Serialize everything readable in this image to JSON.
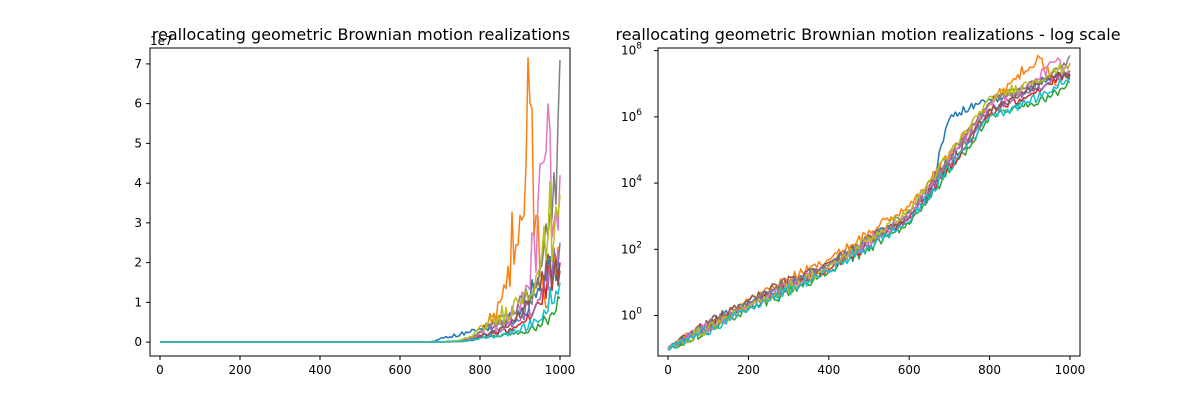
{
  "chart_data": [
    {
      "type": "line",
      "title": "reallocating geometric Brownian motion realizations",
      "xlabel": "",
      "ylabel": "",
      "xlim": [
        -25,
        1025
      ],
      "ylim": [
        -3500000,
        74000000
      ],
      "offset_label": "1e7",
      "x_ticks": [
        0,
        200,
        400,
        600,
        800,
        1000
      ],
      "x_tick_labels": [
        "0",
        "200",
        "400",
        "600",
        "800",
        "1000"
      ],
      "y_ticks": [
        0,
        10000000,
        20000000,
        30000000,
        40000000,
        50000000,
        60000000,
        70000000
      ],
      "y_tick_labels": [
        "0",
        "1",
        "2",
        "3",
        "4",
        "5",
        "6",
        "7"
      ],
      "grid": false,
      "legend": "none",
      "series": [
        {
          "color": "#1f77b4",
          "values": [
            [
              0,
              0.1
            ],
            [
              200,
              2.5
            ],
            [
              400,
              30
            ],
            [
              600,
              1200
            ],
            [
              650,
              3500
            ],
            [
              700,
              1000000
            ],
            [
              800,
              3200000
            ],
            [
              900,
              7000000
            ],
            [
              950,
              14000000
            ],
            [
              1000,
              20000000
            ]
          ]
        },
        {
          "color": "#ff7f0e",
          "values": [
            [
              0,
              0.1
            ],
            [
              200,
              3
            ],
            [
              400,
              50
            ],
            [
              600,
              2000
            ],
            [
              800,
              2500000
            ],
            [
              860,
              14000000
            ],
            [
              900,
              35000000
            ],
            [
              920,
              63000000
            ],
            [
              940,
              30000000
            ],
            [
              960,
              10000000
            ],
            [
              980,
              16000000
            ],
            [
              1000,
              24000000
            ]
          ]
        },
        {
          "color": "#2ca02c",
          "values": [
            [
              0,
              0.1
            ],
            [
              200,
              1.5
            ],
            [
              400,
              20
            ],
            [
              600,
              600
            ],
            [
              800,
              900000
            ],
            [
              900,
              2500000
            ],
            [
              950,
              4000000
            ],
            [
              1000,
              11000000
            ]
          ]
        },
        {
          "color": "#d62728",
          "values": [
            [
              0,
              0.1
            ],
            [
              200,
              2
            ],
            [
              400,
              25
            ],
            [
              600,
              800
            ],
            [
              800,
              1200000
            ],
            [
              900,
              5000000
            ],
            [
              950,
              10000000
            ],
            [
              1000,
              20000000
            ]
          ]
        },
        {
          "color": "#9467bd",
          "values": [
            [
              0,
              0.1
            ],
            [
              200,
              2
            ],
            [
              400,
              30
            ],
            [
              600,
              900
            ],
            [
              800,
              1800000
            ],
            [
              900,
              6000000
            ],
            [
              950,
              12000000
            ],
            [
              1000,
              25000000
            ]
          ]
        },
        {
          "color": "#8c564b",
          "values": [
            [
              0,
              0.1
            ],
            [
              200,
              3
            ],
            [
              400,
              40
            ],
            [
              600,
              1000
            ],
            [
              800,
              1600000
            ],
            [
              900,
              7000000
            ],
            [
              950,
              15000000
            ],
            [
              1000,
              18000000
            ]
          ]
        },
        {
          "color": "#e377c2",
          "values": [
            [
              0,
              0.1
            ],
            [
              200,
              2
            ],
            [
              400,
              30
            ],
            [
              600,
              1100
            ],
            [
              800,
              2400000
            ],
            [
              900,
              9000000
            ],
            [
              970,
              54000000
            ],
            [
              985,
              30000000
            ],
            [
              1000,
              42000000
            ]
          ]
        },
        {
          "color": "#7f7f7f",
          "values": [
            [
              0,
              0.1
            ],
            [
              200,
              2.5
            ],
            [
              400,
              35
            ],
            [
              600,
              1300
            ],
            [
              800,
              2800000
            ],
            [
              900,
              10000000
            ],
            [
              950,
              17000000
            ],
            [
              980,
              30000000
            ],
            [
              1000,
              71000000
            ]
          ]
        },
        {
          "color": "#bcbd22",
          "values": [
            [
              0,
              0.1
            ],
            [
              200,
              1.8
            ],
            [
              400,
              28
            ],
            [
              600,
              1500
            ],
            [
              800,
              3500000
            ],
            [
              900,
              11000000
            ],
            [
              950,
              20000000
            ],
            [
              1000,
              37000000
            ]
          ]
        },
        {
          "color": "#17becf",
          "values": [
            [
              0,
              0.1
            ],
            [
              200,
              1.5
            ],
            [
              400,
              22
            ],
            [
              600,
              700
            ],
            [
              800,
              1100000
            ],
            [
              900,
              3000000
            ],
            [
              950,
              6000000
            ],
            [
              1000,
              15000000
            ]
          ]
        }
      ]
    },
    {
      "type": "line",
      "title": "reallocating geometric Brownian motion realizations - log scale",
      "xlabel": "",
      "ylabel": "",
      "xlim": [
        -25,
        1025
      ],
      "ylim": [
        0.06,
        120000000
      ],
      "yscale": "log",
      "x_ticks": [
        0,
        200,
        400,
        600,
        800,
        1000
      ],
      "x_tick_labels": [
        "0",
        "200",
        "400",
        "600",
        "800",
        "1000"
      ],
      "y_ticks": [
        1,
        100,
        10000,
        1000000,
        100000000
      ],
      "y_tick_labels": [
        [
          "10",
          "0"
        ],
        [
          "10",
          "2"
        ],
        [
          "10",
          "4"
        ],
        [
          "10",
          "6"
        ],
        [
          "10",
          "8"
        ]
      ],
      "grid": false,
      "legend": "none",
      "series_ref": "same as chart 1"
    }
  ]
}
